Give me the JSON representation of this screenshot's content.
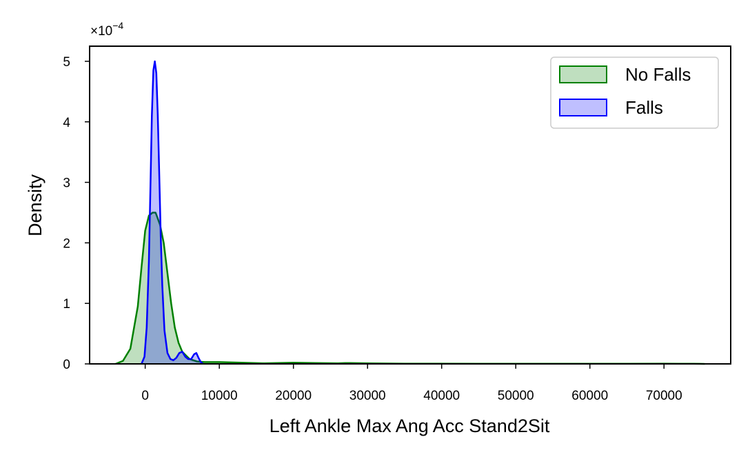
{
  "chart_data": {
    "type": "area",
    "title": "",
    "xlabel": "Left Ankle Max Ang Acc Stand2Sit",
    "ylabel": "Density",
    "y_scale_factor_label": "×10",
    "y_scale_factor_exponent": "−4",
    "xlim": [
      -7500,
      79000
    ],
    "ylim": [
      0,
      5.25
    ],
    "x_ticks": [
      0,
      10000,
      20000,
      30000,
      40000,
      50000,
      60000,
      70000
    ],
    "x_tick_labels": [
      "0",
      "10000",
      "20000",
      "30000",
      "40000",
      "50000",
      "60000",
      "70000"
    ],
    "y_ticks": [
      0,
      1,
      2,
      3,
      4,
      5
    ],
    "y_tick_labels": [
      "0",
      "1",
      "2",
      "3",
      "4",
      "5"
    ],
    "legend_position": "upper right",
    "series": [
      {
        "name": "No Falls",
        "color": "#008000",
        "fill": "rgba(0,128,0,0.25)",
        "x": [
          -4000,
          -3000,
          -2000,
          -1000,
          -500,
          0,
          500,
          1000,
          1400,
          2000,
          2500,
          3000,
          3500,
          4000,
          4500,
          5000,
          6000,
          7000,
          8000,
          10000,
          13000,
          16000,
          20000,
          23000,
          26000,
          27000,
          30000,
          35000,
          40000,
          45000,
          50000,
          55000,
          60000,
          65000,
          70000,
          72000,
          74000,
          75500
        ],
        "y": [
          0,
          0.05,
          0.25,
          0.95,
          1.6,
          2.2,
          2.45,
          2.5,
          2.5,
          2.3,
          2.0,
          1.5,
          1.0,
          0.6,
          0.35,
          0.2,
          0.08,
          0.04,
          0.03,
          0.03,
          0.02,
          0.01,
          0.02,
          0.015,
          0.01,
          0.015,
          0.01,
          0.005,
          0.005,
          0.003,
          0.003,
          0.003,
          0.003,
          0.003,
          0.005,
          0.003,
          0.003,
          0
        ]
      },
      {
        "name": "Falls",
        "color": "#0000ff",
        "fill": "rgba(0,0,255,0.25)",
        "x": [
          -500,
          -100,
          200,
          500,
          700,
          900,
          1100,
          1300,
          1500,
          1700,
          1900,
          2100,
          2300,
          2600,
          3000,
          3400,
          3800,
          4200,
          4600,
          5000,
          5400,
          5800,
          6200,
          6600,
          6900,
          7200,
          7500,
          7800
        ],
        "y": [
          0,
          0.12,
          0.6,
          1.7,
          2.9,
          4.1,
          4.85,
          5.0,
          4.8,
          4.1,
          3.1,
          2.1,
          1.3,
          0.55,
          0.18,
          0.08,
          0.06,
          0.1,
          0.18,
          0.2,
          0.12,
          0.08,
          0.08,
          0.16,
          0.18,
          0.1,
          0.03,
          0
        ]
      }
    ]
  }
}
